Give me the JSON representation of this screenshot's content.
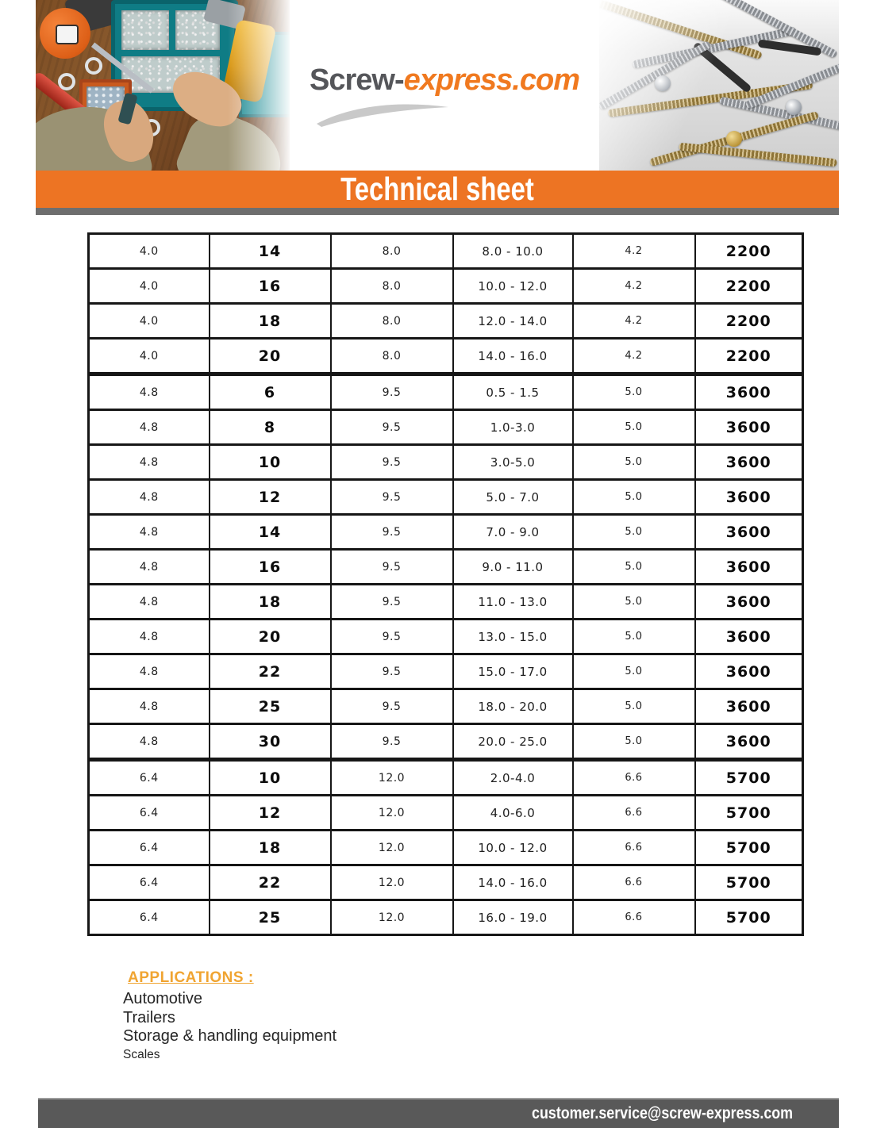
{
  "logo": {
    "part1": "Screw-",
    "part2": "express.com"
  },
  "banner": {
    "title": "Technical sheet"
  },
  "table": {
    "rows": [
      [
        "4.0",
        "14",
        "8.0",
        "8.0 - 10.0",
        "4.2",
        "2200"
      ],
      [
        "4.0",
        "16",
        "8.0",
        "10.0 - 12.0",
        "4.2",
        "2200"
      ],
      [
        "4.0",
        "18",
        "8.0",
        "12.0 - 14.0",
        "4.2",
        "2200"
      ],
      [
        "4.0",
        "20",
        "8.0",
        "14.0 - 16.0",
        "4.2",
        "2200"
      ],
      [
        "4.8",
        "6",
        "9.5",
        "0.5 - 1.5",
        "5.0",
        "3600"
      ],
      [
        "4.8",
        "8",
        "9.5",
        "1.0-3.0",
        "5.0",
        "3600"
      ],
      [
        "4.8",
        "10",
        "9.5",
        "3.0-5.0",
        "5.0",
        "3600"
      ],
      [
        "4.8",
        "12",
        "9.5",
        "5.0 - 7.0",
        "5.0",
        "3600"
      ],
      [
        "4.8",
        "14",
        "9.5",
        "7.0 - 9.0",
        "5.0",
        "3600"
      ],
      [
        "4.8",
        "16",
        "9.5",
        "9.0 - 11.0",
        "5.0",
        "3600"
      ],
      [
        "4.8",
        "18",
        "9.5",
        "11.0 - 13.0",
        "5.0",
        "3600"
      ],
      [
        "4.8",
        "20",
        "9.5",
        "13.0 - 15.0",
        "5.0",
        "3600"
      ],
      [
        "4.8",
        "22",
        "9.5",
        "15.0 - 17.0",
        "5.0",
        "3600"
      ],
      [
        "4.8",
        "25",
        "9.5",
        "18.0 - 20.0",
        "5.0",
        "3600"
      ],
      [
        "4.8",
        "30",
        "9.5",
        "20.0 - 25.0",
        "5.0",
        "3600"
      ],
      [
        "6.4",
        "10",
        "12.0",
        "2.0-4.0",
        "6.6",
        "5700"
      ],
      [
        "6.4",
        "12",
        "12.0",
        "4.0-6.0",
        "6.6",
        "5700"
      ],
      [
        "6.4",
        "18",
        "12.0",
        "10.0 - 12.0",
        "6.6",
        "5700"
      ],
      [
        "6.4",
        "22",
        "12.0",
        "14.0 - 16.0",
        "6.6",
        "5700"
      ],
      [
        "6.4",
        "25",
        "12.0",
        "16.0 - 19.0",
        "6.6",
        "5700"
      ]
    ]
  },
  "applications": {
    "heading": "APPLICATIONS :",
    "items": [
      "Automotive",
      "Trailers",
      "Storage & handling equipment",
      "Scales"
    ]
  },
  "footer": {
    "email": "customer.service@screw-express.com"
  },
  "colors": {
    "banner_orange": "#ED7423",
    "logo_orange": "#F0791F",
    "logo_gray": "#55565A",
    "stripe_gray": "#6E6E6E",
    "footer_gray": "#595959",
    "applications_orange": "#F0A431",
    "table_border_black": "#161616"
  }
}
